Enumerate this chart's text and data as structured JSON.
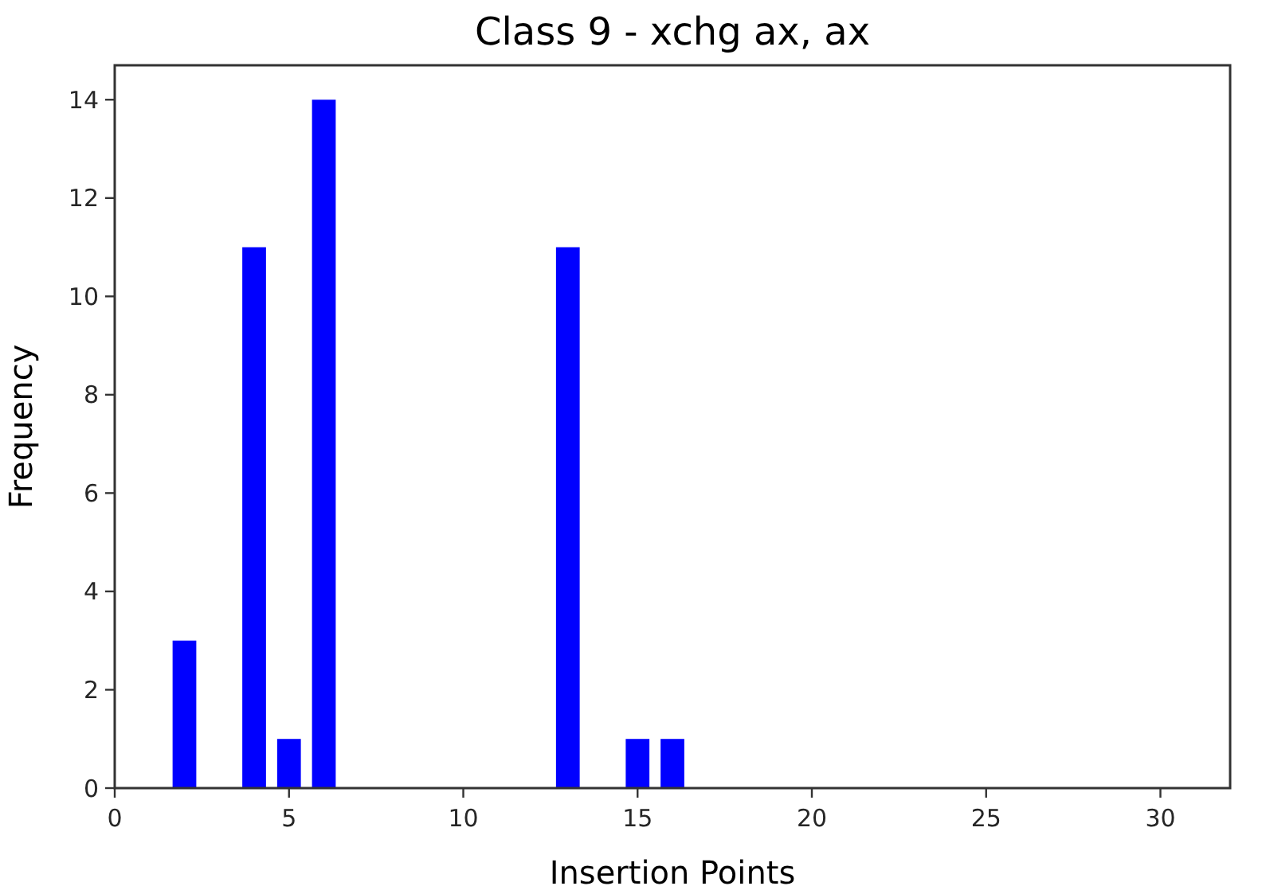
{
  "chart_data": {
    "type": "bar",
    "title": "Class 9 - xchg ax, ax",
    "xlabel": "Insertion Points",
    "ylabel": "Frequency",
    "x": [
      2,
      4,
      5,
      6,
      13,
      15,
      16
    ],
    "values": [
      3,
      11,
      1,
      14,
      11,
      1,
      1
    ],
    "color": "#0000ff",
    "xlim": [
      0,
      32
    ],
    "xticks": [
      0,
      5,
      10,
      15,
      20,
      25,
      30
    ],
    "ylim": [
      0,
      14.7
    ],
    "yticks": [
      0,
      2,
      4,
      6,
      8,
      10,
      12,
      14
    ],
    "grid": false
  }
}
